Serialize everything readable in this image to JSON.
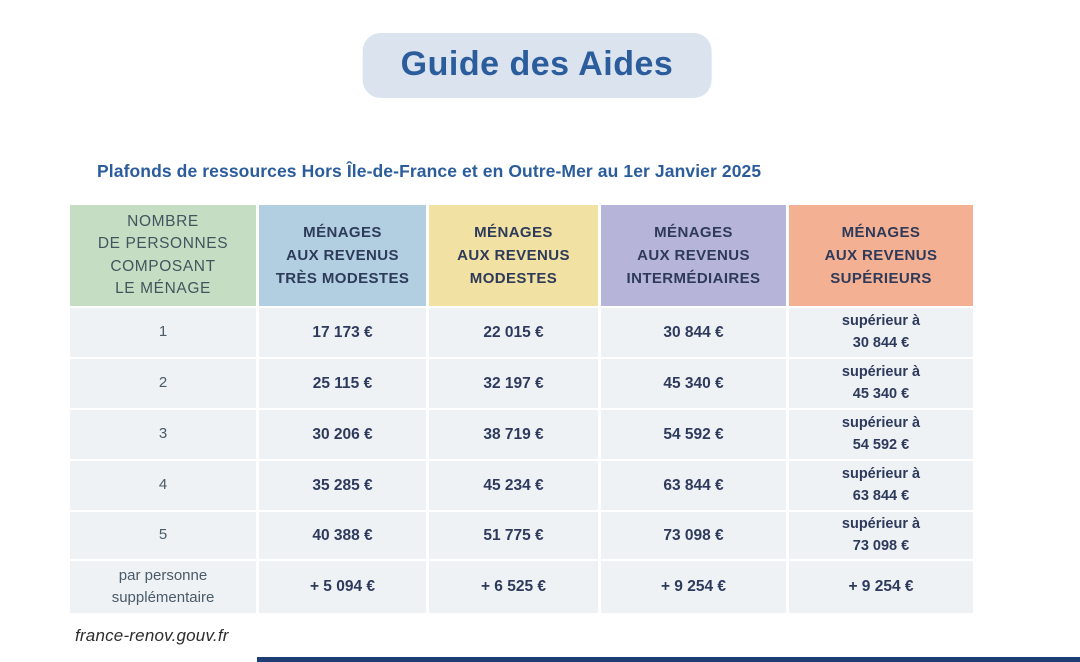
{
  "page": {
    "title": "Guide des Aides",
    "subtitle": "Plafonds de ressources Hors Île-de-France et en Outre-Mer au 1er Janvier 2025",
    "footer_url": "france-renov.gouv.fr"
  },
  "colors": {
    "title_text": "#2b5c9c",
    "title_pill_bg": "#dbe3ef",
    "header_households_bg": "#c5ddc2",
    "header_tres_modestes_bg": "#b2cfe1",
    "header_modestes_bg": "#f1e1a2",
    "header_intermediaires_bg": "#b7b4d9",
    "header_superieurs_bg": "#f4b093",
    "data_cell_bg": "#eef2f5",
    "value_text": "#2e3a5c",
    "bottom_bar": "#1c3e74"
  },
  "table": {
    "headers": [
      "NOMBRE\nDE PERSONNES\nCOMPOSANT\nLE MÉNAGE",
      "MÉNAGES\nAUX REVENUS\nTRÈS MODESTES",
      "MÉNAGES\nAUX REVENUS\nMODESTES",
      "MÉNAGES\nAUX REVENUS\nINTERMÉDIAIRES",
      "MÉNAGES\nAUX REVENUS\nSUPÉRIEURS"
    ],
    "rows": [
      [
        "1",
        "17 173 €",
        "22 015 €",
        "30 844 €",
        "supérieur à\n30 844 €"
      ],
      [
        "2",
        "25 115 €",
        "32 197 €",
        "45 340 €",
        "supérieur à\n45 340 €"
      ],
      [
        "3",
        "30 206 €",
        "38 719 €",
        "54 592 €",
        "supérieur à\n54 592 €"
      ],
      [
        "4",
        "35 285 €",
        "45 234 €",
        "63 844 €",
        "supérieur à\n63 844 €"
      ],
      [
        "5",
        "40 388 €",
        "51 775 €",
        "73 098 €",
        "supérieur à\n73 098 €"
      ],
      [
        "par personne\nsupplémentaire",
        "+ 5 094 €",
        "+ 6 525 €",
        "+ 9 254 €",
        "+ 9 254 €"
      ]
    ]
  }
}
